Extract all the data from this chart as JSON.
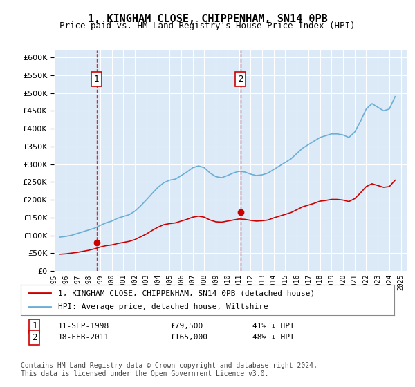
{
  "title": "1, KINGHAM CLOSE, CHIPPENHAM, SN14 0PB",
  "subtitle": "Price paid vs. HM Land Registry's House Price Index (HPI)",
  "ylabel": "",
  "background_color": "#ffffff",
  "plot_bg_color": "#dce9f7",
  "grid_color": "#ffffff",
  "hpi_color": "#6aaed6",
  "price_color": "#cc0000",
  "sale1_date_num": 1998.69,
  "sale1_price": 79500,
  "sale1_label": "1",
  "sale2_date_num": 2011.12,
  "sale2_price": 165000,
  "sale2_label": "2",
  "xmin": 1995.0,
  "xmax": 2025.5,
  "ymin": 0,
  "ymax": 620000,
  "yticks": [
    0,
    50000,
    100000,
    150000,
    200000,
    250000,
    300000,
    350000,
    400000,
    450000,
    500000,
    550000,
    600000
  ],
  "xtick_years": [
    1995,
    1996,
    1997,
    1998,
    1999,
    2000,
    2001,
    2002,
    2003,
    2004,
    2005,
    2006,
    2007,
    2008,
    2009,
    2010,
    2011,
    2012,
    2013,
    2014,
    2015,
    2016,
    2017,
    2018,
    2019,
    2020,
    2021,
    2022,
    2023,
    2024,
    2025
  ],
  "legend_entries": [
    "1, KINGHAM CLOSE, CHIPPENHAM, SN14 0PB (detached house)",
    "HPI: Average price, detached house, Wiltshire"
  ],
  "annotation1": "1   11-SEP-1998        £79,500        41% ↓ HPI",
  "annotation2": "2   18-FEB-2011        £165,000      48% ↓ HPI",
  "footnote": "Contains HM Land Registry data © Crown copyright and database right 2024.\nThis data is licensed under the Open Government Licence v3.0.",
  "hpi_data": {
    "years": [
      1995.5,
      1996.0,
      1996.5,
      1997.0,
      1997.5,
      1998.0,
      1998.5,
      1999.0,
      1999.5,
      2000.0,
      2000.5,
      2001.0,
      2001.5,
      2002.0,
      2002.5,
      2003.0,
      2003.5,
      2004.0,
      2004.5,
      2005.0,
      2005.5,
      2006.0,
      2006.5,
      2007.0,
      2007.5,
      2008.0,
      2008.5,
      2009.0,
      2009.5,
      2010.0,
      2010.5,
      2011.0,
      2011.5,
      2012.0,
      2012.5,
      2013.0,
      2013.5,
      2014.0,
      2014.5,
      2015.0,
      2015.5,
      2016.0,
      2016.5,
      2017.0,
      2017.5,
      2018.0,
      2018.5,
      2019.0,
      2019.5,
      2020.0,
      2020.5,
      2021.0,
      2021.5,
      2022.0,
      2022.5,
      2023.0,
      2023.5,
      2024.0,
      2024.5
    ],
    "values": [
      95000,
      97000,
      100000,
      105000,
      110000,
      115000,
      120000,
      128000,
      135000,
      140000,
      148000,
      153000,
      158000,
      168000,
      183000,
      200000,
      218000,
      235000,
      248000,
      255000,
      258000,
      268000,
      278000,
      290000,
      295000,
      290000,
      275000,
      265000,
      262000,
      268000,
      275000,
      280000,
      278000,
      272000,
      268000,
      270000,
      275000,
      285000,
      295000,
      305000,
      315000,
      330000,
      345000,
      355000,
      365000,
      375000,
      380000,
      385000,
      385000,
      382000,
      375000,
      390000,
      420000,
      455000,
      470000,
      460000,
      450000,
      455000,
      490000
    ]
  },
  "price_data": {
    "years": [
      1995.5,
      1996.0,
      1996.5,
      1997.0,
      1997.5,
      1998.0,
      1998.5,
      1999.0,
      1999.5,
      2000.0,
      2000.5,
      2001.0,
      2001.5,
      2002.0,
      2002.5,
      2003.0,
      2003.5,
      2004.0,
      2004.5,
      2005.0,
      2005.5,
      2006.0,
      2006.5,
      2007.0,
      2007.5,
      2008.0,
      2008.5,
      2009.0,
      2009.5,
      2010.0,
      2010.5,
      2011.0,
      2011.5,
      2012.0,
      2012.5,
      2013.0,
      2013.5,
      2014.0,
      2014.5,
      2015.0,
      2015.5,
      2016.0,
      2016.5,
      2017.0,
      2017.5,
      2018.0,
      2018.5,
      2019.0,
      2019.5,
      2020.0,
      2020.5,
      2021.0,
      2021.5,
      2022.0,
      2022.5,
      2023.0,
      2023.5,
      2024.0,
      2024.5
    ],
    "values": [
      47000,
      48000,
      50000,
      52000,
      55000,
      58000,
      62000,
      67000,
      71000,
      73000,
      77000,
      80000,
      83000,
      88000,
      96000,
      104000,
      114000,
      123000,
      130000,
      133000,
      135000,
      140000,
      145000,
      151000,
      154000,
      151000,
      143000,
      138000,
      137000,
      140000,
      143000,
      146000,
      145000,
      142000,
      140000,
      141000,
      143000,
      149000,
      154000,
      159000,
      164000,
      172000,
      180000,
      185000,
      190000,
      196000,
      198000,
      201000,
      201000,
      199000,
      195000,
      203000,
      219000,
      237000,
      245000,
      240000,
      235000,
      237000,
      255000
    ]
  }
}
